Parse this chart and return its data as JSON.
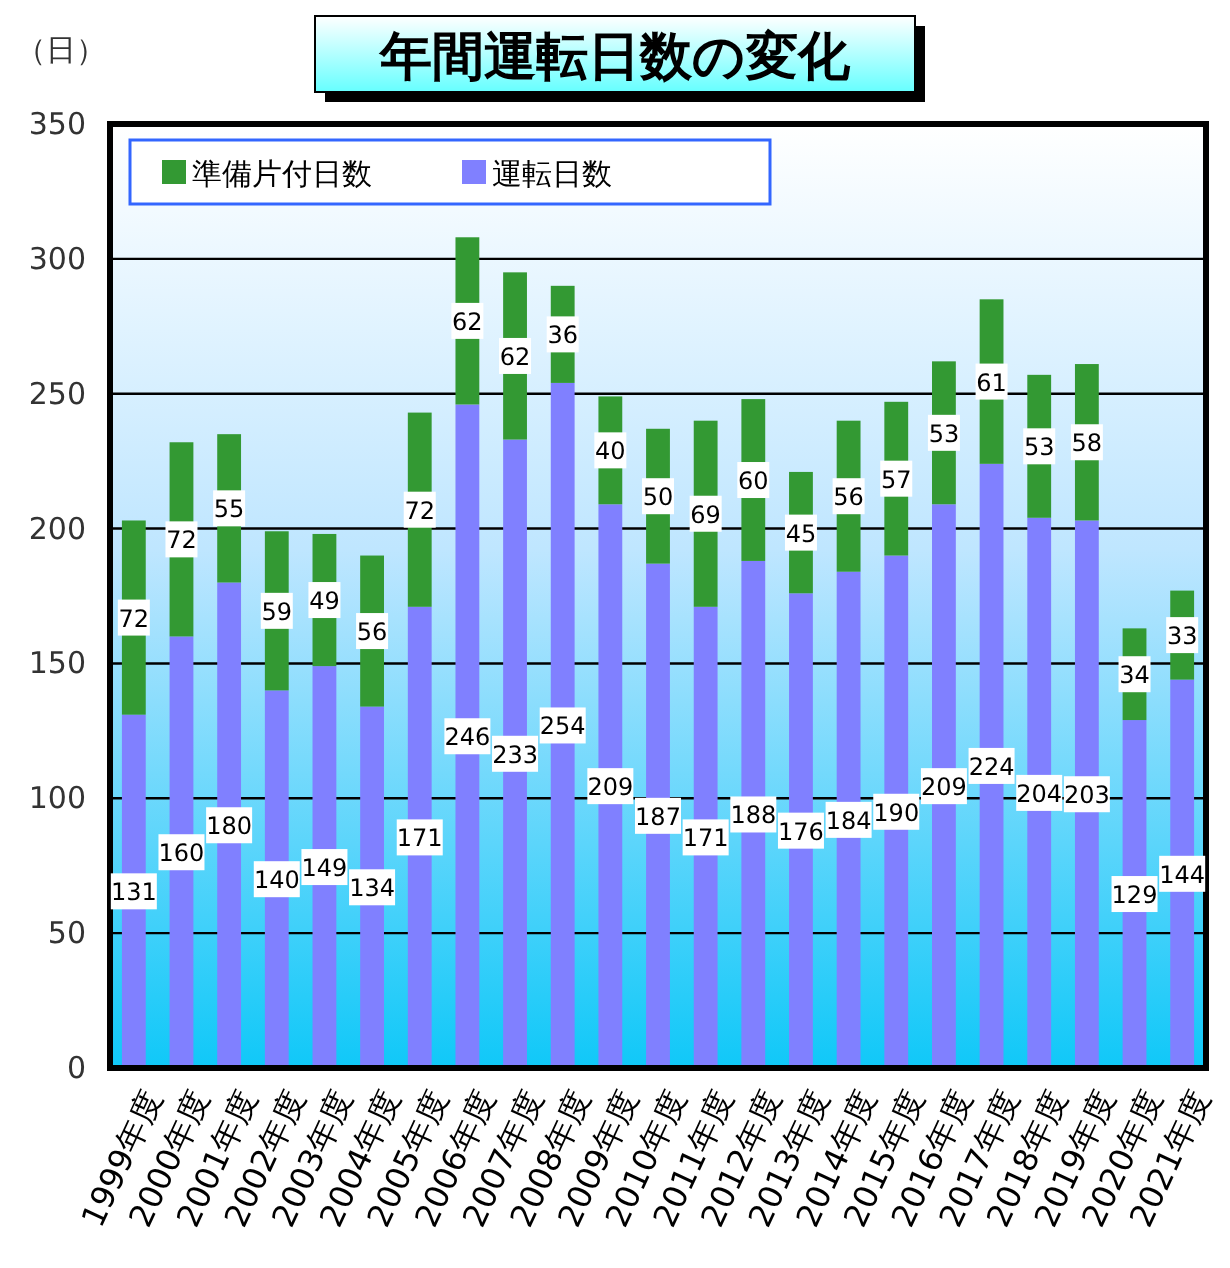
{
  "chart_data": {
    "type": "bar",
    "title": "年間運転日数の変化",
    "ylabel": "（日）",
    "categories": [
      "1999年度",
      "2000年度",
      "2001年度",
      "2002年度",
      "2003年度",
      "2004年度",
      "2005年度",
      "2006年度",
      "2007年度",
      "2008年度",
      "2009年度",
      "2010年度",
      "2011年度",
      "2012年度",
      "2013年度",
      "2014年度",
      "2015年度",
      "2016年度",
      "2017年度",
      "2018年度",
      "2019年度",
      "2020年度",
      "2021年度"
    ],
    "series": [
      {
        "name": "運転日数",
        "color": "#8080ff",
        "values": [
          131,
          160,
          180,
          140,
          149,
          134,
          171,
          246,
          233,
          254,
          209,
          187,
          171,
          188,
          176,
          184,
          190,
          209,
          224,
          204,
          203,
          129,
          144
        ]
      },
      {
        "name": "準備片付日数",
        "color": "#339933",
        "values": [
          72,
          72,
          55,
          59,
          49,
          56,
          72,
          62,
          62,
          36,
          40,
          50,
          69,
          60,
          45,
          56,
          57,
          53,
          61,
          53,
          58,
          34,
          33
        ]
      }
    ],
    "stacked": true,
    "data_labels": true,
    "ylim": [
      0,
      350
    ],
    "yticks": [
      0,
      50,
      100,
      150,
      200,
      250,
      300,
      350
    ],
    "grid": "y",
    "legend": "top left"
  }
}
